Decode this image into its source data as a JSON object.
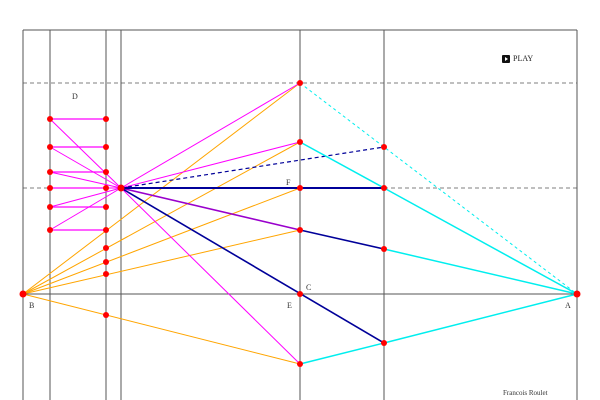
{
  "labels": {
    "A": "A",
    "B": "B",
    "C": "C",
    "D": "D",
    "E": "E",
    "F": "F"
  },
  "play_button": {
    "label": "PLAY",
    "icon": "play-icon"
  },
  "author": "Francois Roulet",
  "colors": {
    "frame": "#555555",
    "magenta": "#ff00ff",
    "purple": "#9900cc",
    "orange": "#ffa500",
    "navy": "#000099",
    "cyan": "#00eeee",
    "point": "#ff0000"
  }
}
